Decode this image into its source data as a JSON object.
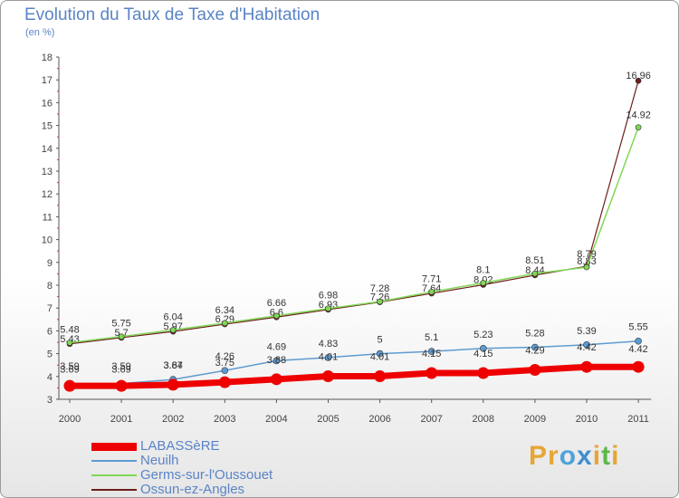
{
  "header": {
    "title": "Evolution du Taux de Taxe d'Habitation",
    "unit": "(en %)"
  },
  "brand": {
    "text": "Proxiti",
    "letters": [
      "P",
      "r",
      "o",
      "x",
      "i",
      "t",
      "i"
    ],
    "colors": [
      "#e6a637",
      "#e6a637",
      "#4da3d9",
      "#3f8fd1",
      "#e6a637",
      "#5bb84a",
      "#e6a637"
    ]
  },
  "chart_data": {
    "type": "line",
    "title": "Evolution du Taux de Taxe d'Habitation",
    "ylabel": "(en %)",
    "xlabel": "",
    "x": [
      "2000",
      "2001",
      "2002",
      "2003",
      "2004",
      "2005",
      "2006",
      "2007",
      "2008",
      "2009",
      "2010",
      "2011"
    ],
    "ylim": [
      3,
      18
    ],
    "yticks": [
      "3",
      "4",
      "5",
      "6",
      "7",
      "8",
      "9",
      "10",
      "11",
      "12",
      "13",
      "14",
      "15",
      "16",
      "17",
      "18"
    ],
    "grid": false,
    "legend_position": "bottom-left",
    "series": [
      {
        "name": "LABASSèRE",
        "color": "#ee0000",
        "values": [
          3.59,
          3.59,
          3.64,
          3.75,
          3.88,
          4.01,
          4.01,
          4.15,
          4.15,
          4.29,
          4.42,
          4.42
        ],
        "labels": [
          "3.59",
          "3.59",
          "3.64",
          "3.75",
          "3.88",
          "4.01",
          "4.01",
          "4.15",
          "4.15",
          "4.29",
          "4.42",
          "4.42"
        ]
      },
      {
        "name": "Neuilh",
        "color": "#5f9bd0",
        "values": [
          3.69,
          3.69,
          3.87,
          4.26,
          4.69,
          4.83,
          5,
          5.1,
          5.23,
          5.28,
          5.39,
          5.55
        ],
        "labels": [
          "3.69",
          "3.69",
          "3.87",
          "4.26",
          "4.69",
          "4.83",
          "5",
          "5.1",
          "5.23",
          "5.28",
          "5.39",
          "5.55"
        ]
      },
      {
        "name": "Germs-sur-l'Oussouet",
        "color": "#7fd854",
        "values": [
          5.48,
          5.75,
          6.04,
          6.34,
          6.66,
          6.98,
          7.28,
          7.71,
          8.1,
          8.51,
          8.79,
          14.92
        ],
        "labels": [
          "5.48",
          "5.75",
          "6.04",
          "6.34",
          "6.66",
          "6.98",
          "7.28",
          "7.71",
          "8.1",
          "8.51",
          "8.79",
          "14.92"
        ]
      },
      {
        "name": "Ossun-ez-Angles",
        "color": "#6e1d1d",
        "values": [
          5.43,
          5.7,
          5.97,
          6.29,
          6.6,
          6.93,
          7.26,
          7.64,
          8.02,
          8.44,
          8.83,
          16.96
        ],
        "labels": [
          "5.43",
          "5.7",
          "5.97",
          "6.29",
          "6.6",
          "6.93",
          "7.26",
          "7.64",
          "8.02",
          "8.44",
          "8.83",
          "16.96"
        ]
      }
    ]
  }
}
